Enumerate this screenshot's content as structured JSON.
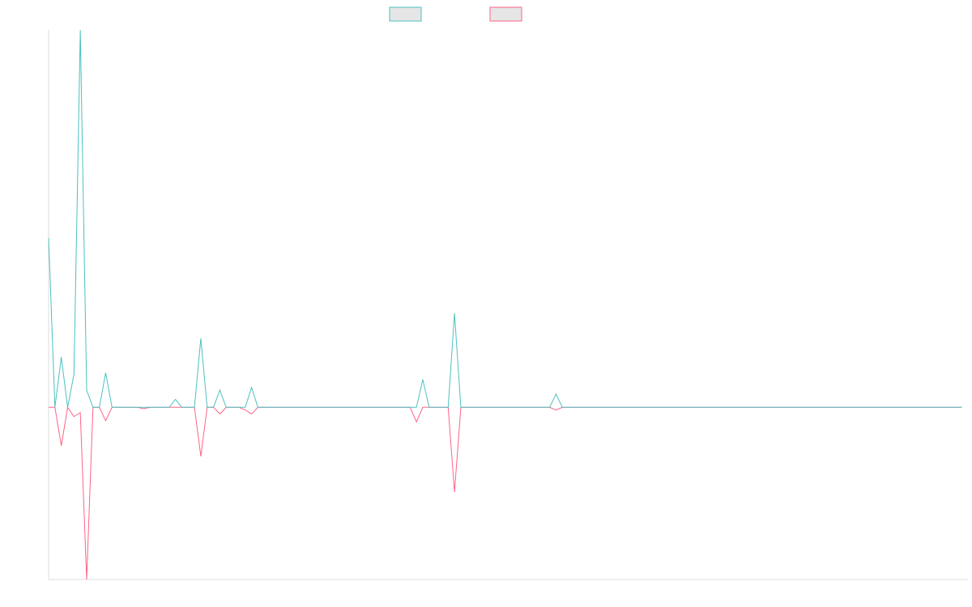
{
  "chart_data": {
    "type": "line",
    "title": "",
    "xlabel": "",
    "ylabel": "",
    "grid": false,
    "legend_position": "top-center",
    "ylim": [
      -130,
      285
    ],
    "series": [
      {
        "color": "#4bc0c0",
        "legend_fill": "#e6e6e6",
        "values": [
          128,
          0,
          38,
          0,
          25,
          285,
          13,
          0,
          0,
          26,
          0,
          0,
          0,
          0,
          0,
          0,
          0,
          0,
          0,
          0,
          6,
          0,
          0,
          0,
          52,
          0,
          0,
          13,
          0,
          0,
          0,
          0,
          15,
          0,
          0,
          0,
          0,
          0,
          0,
          0,
          0,
          0,
          0,
          0,
          0,
          0,
          0,
          0,
          0,
          0,
          0,
          0,
          0,
          0,
          0,
          0,
          0,
          0,
          0,
          21,
          0,
          0,
          0,
          0,
          71,
          0,
          0,
          0,
          0,
          0,
          0,
          0,
          0,
          0,
          0,
          0,
          0,
          0,
          0,
          0,
          10,
          0,
          0,
          0,
          0,
          0,
          0,
          0,
          0,
          0,
          0,
          0,
          0,
          0,
          0,
          0,
          0,
          0,
          0,
          0,
          0,
          0,
          0,
          0,
          0,
          0,
          0,
          0,
          0,
          0,
          0,
          0,
          0,
          0,
          0,
          0,
          0,
          0,
          0,
          0,
          0,
          0,
          0,
          0,
          0,
          0,
          0,
          0,
          0,
          0,
          0,
          0,
          0,
          0,
          0,
          0,
          0,
          0,
          0,
          0,
          0,
          0,
          0,
          0,
          0
        ]
      },
      {
        "color": "#ff6384",
        "legend_fill": "#e6e6e6",
        "values": [
          0,
          0,
          -29,
          0,
          -7,
          -4,
          -130,
          0,
          0,
          -10,
          0,
          0,
          0,
          0,
          0,
          -1,
          0,
          0,
          0,
          0,
          0,
          0,
          0,
          0,
          -37,
          0,
          0,
          -5,
          0,
          0,
          0,
          -2,
          -5,
          0,
          0,
          0,
          0,
          0,
          0,
          0,
          0,
          0,
          0,
          0,
          0,
          0,
          0,
          0,
          0,
          0,
          0,
          0,
          0,
          0,
          0,
          0,
          0,
          0,
          -11,
          0,
          0,
          0,
          0,
          0,
          -64,
          0,
          0,
          0,
          0,
          0,
          0,
          0,
          0,
          0,
          0,
          0,
          0,
          0,
          0,
          0,
          -2,
          0,
          0,
          0,
          0,
          0,
          0,
          0,
          0,
          0,
          0,
          0,
          0,
          0,
          0,
          0,
          0,
          0,
          0,
          0,
          0,
          0,
          0,
          0,
          0,
          0,
          0,
          0,
          0,
          0,
          0,
          0,
          0,
          0,
          0,
          0,
          0,
          0,
          0,
          0,
          0,
          0,
          0,
          0,
          0,
          0,
          0,
          0,
          0,
          0,
          0,
          0,
          0,
          0,
          0,
          0,
          0,
          0,
          0,
          0,
          0,
          0,
          0,
          0,
          0
        ]
      }
    ]
  }
}
